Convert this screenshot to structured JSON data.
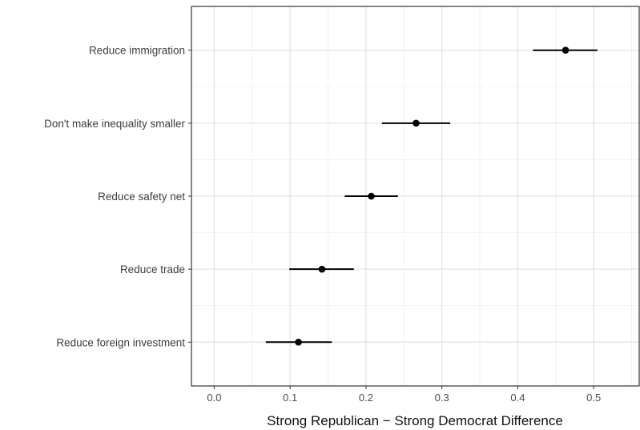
{
  "chart_data": {
    "type": "dot-errorbar",
    "xlabel": "Strong Republican − Strong Democrat Difference",
    "ylabel": "",
    "title": "",
    "xlim": [
      -0.03,
      0.56
    ],
    "x_ticks": [
      "0.0",
      "0.1",
      "0.2",
      "0.3",
      "0.4",
      "0.5"
    ],
    "grid": true,
    "categories": [
      "Reduce immigration",
      "Don't make inequality smaller",
      "Reduce safety net",
      "Reduce trade",
      "Reduce foreign investment"
    ],
    "estimates": [
      0.463,
      0.266,
      0.207,
      0.142,
      0.111
    ],
    "ci_low": [
      0.42,
      0.221,
      0.172,
      0.099,
      0.068
    ],
    "ci_high": [
      0.505,
      0.311,
      0.242,
      0.184,
      0.155
    ],
    "colors": {
      "point": "#000000",
      "grid_major": "#e3e3e3",
      "grid_minor": "#f1f1f1",
      "panel_border": "#333333",
      "tick_text": "#4d4d4d"
    }
  }
}
